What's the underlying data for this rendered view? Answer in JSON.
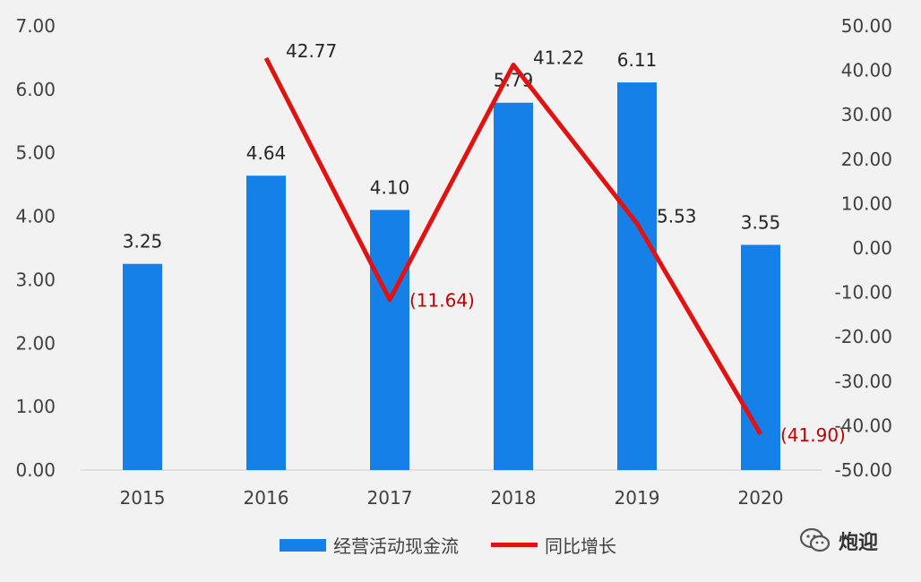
{
  "chart_data": {
    "type": "bar+line",
    "categories": [
      "2015",
      "2016",
      "2017",
      "2018",
      "2019",
      "2020"
    ],
    "series": [
      {
        "name": "经营活动现金流",
        "type": "bar",
        "axis": "left",
        "color": "#1480e8",
        "values": [
          3.25,
          4.64,
          4.1,
          5.79,
          6.11,
          3.55
        ],
        "labels": [
          "3.25",
          "4.64",
          "4.10",
          "5.79",
          "6.11",
          "3.55"
        ]
      },
      {
        "name": "同比增长",
        "type": "line",
        "axis": "right",
        "color": "#e01212",
        "values": [
          null,
          42.77,
          -11.64,
          41.22,
          5.53,
          -41.9
        ],
        "labels": [
          "",
          "42.77",
          "(11.64)",
          "41.22",
          "5.53",
          "(41.90)"
        ]
      }
    ],
    "y_left": {
      "min": 0,
      "max": 7,
      "step": 1,
      "ticks": [
        "0.00",
        "1.00",
        "2.00",
        "3.00",
        "4.00",
        "5.00",
        "6.00",
        "7.00"
      ]
    },
    "y_right": {
      "min": -50,
      "max": 50,
      "step": 10,
      "ticks": [
        "-50.00",
        "-40.00",
        "-30.00",
        "-20.00",
        "-10.00",
        "0.00",
        "10.00",
        "20.00",
        "30.00",
        "40.00",
        "50.00"
      ]
    },
    "grid": false,
    "legend_position": "bottom"
  },
  "watermark": {
    "text": "炮迎",
    "icon": "wechat-icon"
  }
}
